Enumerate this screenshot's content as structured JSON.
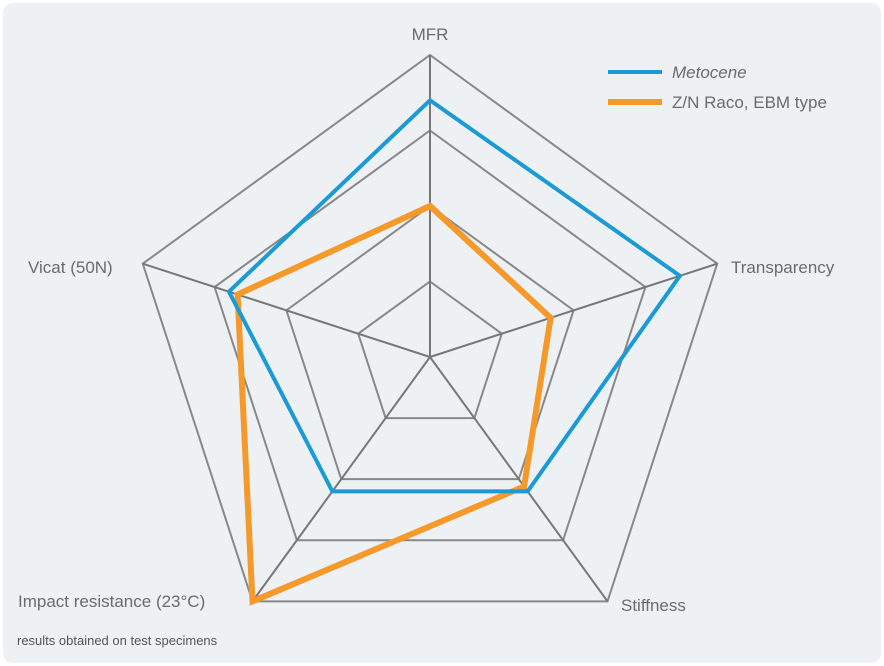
{
  "chart_data": {
    "type": "radar",
    "axes": [
      "MFR",
      "Transparency",
      "Stiffness",
      "Impact resistance (23°C)",
      "Vicat (50N)"
    ],
    "rmax": 1.0,
    "grid_levels": 4,
    "grid": true,
    "legend_position": "top-right",
    "series": [
      {
        "name": "Metocene",
        "italic": true,
        "color": "#1a9ad6",
        "values": [
          0.85,
          0.87,
          0.55,
          0.55,
          0.7
        ]
      },
      {
        "name": "Z/N Raco, EBM type",
        "italic": false,
        "color": "#f5992a",
        "values": [
          0.5,
          0.42,
          0.53,
          1.0,
          0.67
        ]
      }
    ],
    "grid_color": "#888888"
  },
  "footnote": "results obtained on test specimens"
}
